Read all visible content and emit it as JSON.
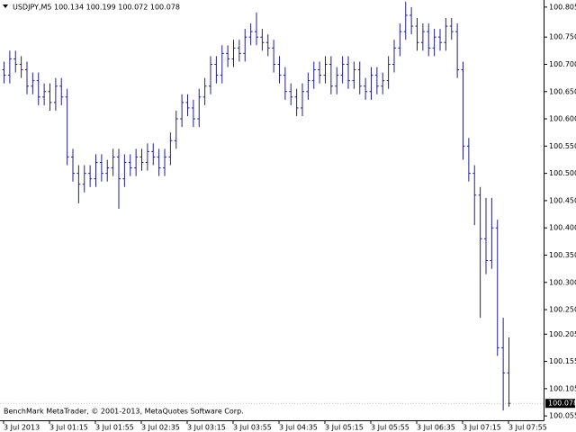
{
  "chart_data": {
    "type": "ohlc",
    "title": "USDJPY,M5",
    "info": "100.134 100.199 100.072 100.078",
    "annotation": "BenchMark MetaTrader, © 2001-2013, MetaQuotes Software Corp.",
    "color": "#1f1f8f",
    "categories": [
      "3 Jul 2013",
      null,
      null,
      null,
      null,
      null,
      null,
      null,
      "3 Jul 01:15",
      null,
      null,
      null,
      null,
      null,
      null,
      null,
      "3 Jul 01:55",
      null,
      null,
      null,
      null,
      null,
      null,
      null,
      "3 Jul 02:35",
      null,
      null,
      null,
      null,
      null,
      null,
      null,
      "3 Jul 03:15",
      null,
      null,
      null,
      null,
      null,
      null,
      null,
      "3 Jul 03:55",
      null,
      null,
      null,
      null,
      null,
      null,
      null,
      "3 Jul 04:35",
      null,
      null,
      null,
      null,
      null,
      null,
      null,
      "3 Jul 05:15",
      null,
      null,
      null,
      null,
      null,
      null,
      null,
      "3 Jul 05:55",
      null,
      null,
      null,
      null,
      null,
      null,
      null,
      "3 Jul 06:35",
      null,
      null,
      null,
      null,
      null,
      null,
      null,
      "3 Jul 07:15",
      null,
      null,
      null,
      null,
      null,
      null,
      null,
      "3 Jul 07:55"
    ],
    "open": [
      100.69,
      100.68,
      100.71,
      100.7,
      100.69,
      100.66,
      100.67,
      100.64,
      100.65,
      100.63,
      100.66,
      100.64,
      100.53,
      100.5,
      100.48,
      100.5,
      100.49,
      100.52,
      100.5,
      100.51,
      100.53,
      100.49,
      100.52,
      100.51,
      100.53,
      100.52,
      100.54,
      100.53,
      100.51,
      100.53,
      100.56,
      100.6,
      100.63,
      100.62,
      100.6,
      100.64,
      100.66,
      100.7,
      100.68,
      100.72,
      100.71,
      100.73,
      100.72,
      100.75,
      100.76,
      100.75,
      100.74,
      100.73,
      100.7,
      100.68,
      100.65,
      100.64,
      100.62,
      100.65,
      100.67,
      100.69,
      100.68,
      100.7,
      100.66,
      100.68,
      100.7,
      100.67,
      100.69,
      100.66,
      100.65,
      100.68,
      100.66,
      100.67,
      100.7,
      100.73,
      100.76,
      100.79,
      100.77,
      100.74,
      100.76,
      100.73,
      100.75,
      100.74,
      100.77,
      100.76,
      100.69,
      100.55,
      100.5,
      100.46,
      100.38,
      100.34,
      100.4,
      100.18,
      100.134
    ],
    "high": [
      100.705,
      100.725,
      100.725,
      100.715,
      100.705,
      100.685,
      100.685,
      100.665,
      100.665,
      100.675,
      100.675,
      100.655,
      100.545,
      100.515,
      100.515,
      100.515,
      100.535,
      100.535,
      100.525,
      100.545,
      100.545,
      100.535,
      100.535,
      100.545,
      100.545,
      100.555,
      100.555,
      100.545,
      100.545,
      100.575,
      100.615,
      100.645,
      100.645,
      100.635,
      100.655,
      100.675,
      100.715,
      100.715,
      100.735,
      100.735,
      100.745,
      100.745,
      100.765,
      100.775,
      100.795,
      100.765,
      100.755,
      100.745,
      100.715,
      100.695,
      100.665,
      100.655,
      100.665,
      100.685,
      100.705,
      100.705,
      100.715,
      100.715,
      100.695,
      100.715,
      100.715,
      100.705,
      100.705,
      100.675,
      100.695,
      100.695,
      100.685,
      100.715,
      100.745,
      100.775,
      100.815,
      100.805,
      100.785,
      100.775,
      100.775,
      100.765,
      100.765,
      100.785,
      100.785,
      100.775,
      100.705,
      100.565,
      100.515,
      100.475,
      100.455,
      100.455,
      100.415,
      100.235,
      100.199
    ],
    "low": [
      100.665,
      100.665,
      100.685,
      100.675,
      100.645,
      100.645,
      100.625,
      100.625,
      100.615,
      100.615,
      100.625,
      100.515,
      100.485,
      100.445,
      100.465,
      100.475,
      100.475,
      100.485,
      100.485,
      100.495,
      100.435,
      100.475,
      100.495,
      100.495,
      100.505,
      100.505,
      100.515,
      100.495,
      100.495,
      100.515,
      100.545,
      100.585,
      100.605,
      100.585,
      100.585,
      100.625,
      100.645,
      100.665,
      100.665,
      100.695,
      100.695,
      100.705,
      100.705,
      100.735,
      100.735,
      100.725,
      100.715,
      100.685,
      100.665,
      100.635,
      100.625,
      100.605,
      100.605,
      100.635,
      100.655,
      100.665,
      100.665,
      100.645,
      100.645,
      100.665,
      100.655,
      100.655,
      100.645,
      100.635,
      100.635,
      100.645,
      100.645,
      100.655,
      100.685,
      100.715,
      100.745,
      100.755,
      100.725,
      100.725,
      100.715,
      100.715,
      100.725,
      100.725,
      100.745,
      100.675,
      100.525,
      100.485,
      100.405,
      100.235,
      100.315,
      100.325,
      100.165,
      100.065,
      100.072
    ],
    "close": [
      100.68,
      100.71,
      100.7,
      100.69,
      100.66,
      100.67,
      100.64,
      100.65,
      100.63,
      100.66,
      100.64,
      100.53,
      100.5,
      100.48,
      100.5,
      100.49,
      100.52,
      100.5,
      100.51,
      100.53,
      100.49,
      100.52,
      100.51,
      100.53,
      100.52,
      100.54,
      100.53,
      100.51,
      100.53,
      100.56,
      100.6,
      100.63,
      100.62,
      100.6,
      100.64,
      100.66,
      100.7,
      100.68,
      100.72,
      100.71,
      100.73,
      100.72,
      100.75,
      100.76,
      100.75,
      100.74,
      100.73,
      100.7,
      100.68,
      100.65,
      100.64,
      100.62,
      100.65,
      100.67,
      100.69,
      100.68,
      100.7,
      100.66,
      100.68,
      100.7,
      100.67,
      100.69,
      100.66,
      100.65,
      100.68,
      100.66,
      100.67,
      100.7,
      100.73,
      100.76,
      100.79,
      100.77,
      100.74,
      100.76,
      100.73,
      100.75,
      100.74,
      100.77,
      100.76,
      100.69,
      100.55,
      100.5,
      100.46,
      100.38,
      100.34,
      100.4,
      100.18,
      100.134,
      100.078
    ],
    "ylim": [
      100.047,
      100.818
    ],
    "yticks": [
      100.805,
      {
        "value": 100.75,
        "label": "100.750"
      },
      {
        "value": 100.7,
        "label": "100.700"
      },
      {
        "value": 100.65,
        "label": "100.650"
      },
      {
        "value": 100.6,
        "label": "100.600"
      },
      {
        "value": 100.55,
        "label": "100.550"
      },
      {
        "value": 100.5,
        "label": "100.500"
      },
      {
        "value": 100.45,
        "label": "100.450"
      },
      {
        "value": 100.4,
        "label": "100.400"
      },
      {
        "value": 100.35,
        "label": "100.350"
      },
      {
        "value": 100.3,
        "label": "100.300"
      },
      {
        "value": 100.25,
        "label": "100.250"
      },
      100.205,
      100.155,
      100.105,
      100.055
    ]
  }
}
